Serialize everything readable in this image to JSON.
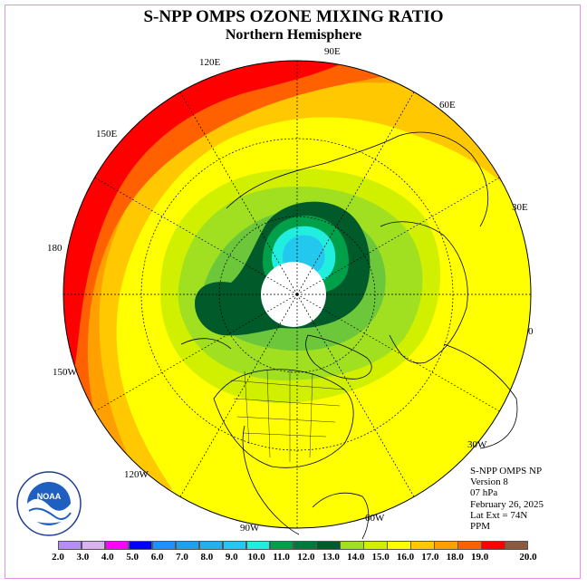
{
  "header": {
    "title": "S-NPP OMPS OZONE MIXING RATIO",
    "subtitle": "Northern Hemisphere"
  },
  "longitude_labels": [
    {
      "text": "90E"
    },
    {
      "text": "60E"
    },
    {
      "text": "30E"
    },
    {
      "text": "0"
    },
    {
      "text": "30W"
    },
    {
      "text": "60W"
    },
    {
      "text": "90W"
    },
    {
      "text": "120W"
    },
    {
      "text": "150W"
    },
    {
      "text": "180"
    },
    {
      "text": "150E"
    },
    {
      "text": "120E"
    }
  ],
  "info": {
    "instrument": "S-NPP OMPS NP",
    "version": "Version 8",
    "pressure": "07 hPa",
    "date": "February 26, 2025",
    "lat_ext": "Lat Ext = 74N",
    "units": "PPM"
  },
  "colorbar": {
    "labels": [
      "2.0",
      "3.0",
      "4.0",
      "5.0",
      "6.0",
      "7.0",
      "8.0",
      "9.0",
      "10.0",
      "11.0",
      "12.0",
      "13.0",
      "14.0",
      "15.0",
      "16.0",
      "17.0",
      "18.0",
      "19.0",
      "20.0"
    ],
    "colors": [
      "#b58ef0",
      "#d9b3f0",
      "#ff00ff",
      "#0000ff",
      "#1e90ff",
      "#1ca0f0",
      "#22b0ee",
      "#22c8ee",
      "#22eee0",
      "#00a04a",
      "#007a3a",
      "#005a2a",
      "#a0e020",
      "#d0f000",
      "#ffff00",
      "#ffc800",
      "#ffa000",
      "#ff6000",
      "#ff0000",
      "#8b5a3c"
    ]
  },
  "logo": {
    "text": "NOAA",
    "ring_text": "NATIONAL OCEANIC AND ATMOSPHERIC ADMINISTRATION · U.S. DEPARTMENT OF COMMERCE"
  },
  "colors": {
    "frame": "#e58fe5",
    "pole_cap": "#ffffff"
  }
}
